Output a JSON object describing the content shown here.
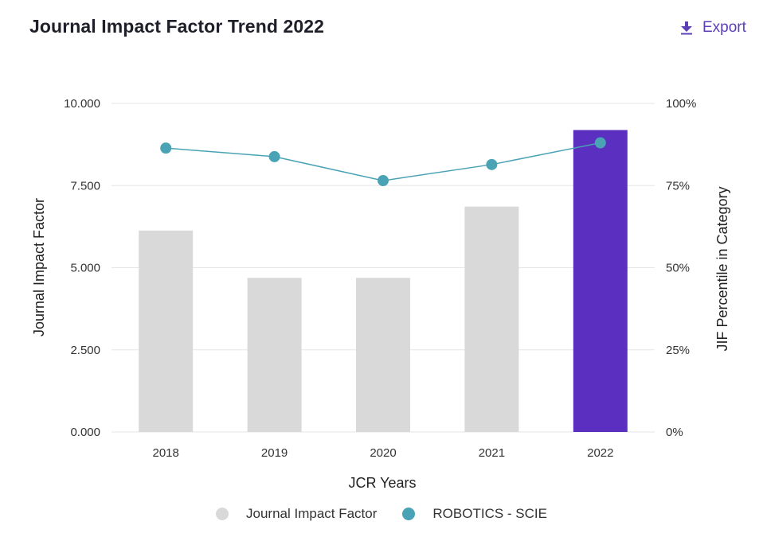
{
  "header": {
    "title": "Journal Impact Factor Trend 2022",
    "export_label": "Export",
    "export_icon": "download-icon"
  },
  "colors": {
    "bar_default": "#d9d9d9",
    "bar_highlight": "#5b2fc0",
    "line": "#4aa3b5",
    "accent": "#5b3fb6",
    "grid": "#e6e6e6"
  },
  "chart_data": {
    "type": "bar",
    "title": "Journal Impact Factor Trend 2022",
    "xlabel": "JCR Years",
    "ylabel": "Journal Impact Factor",
    "y2label": "JIF Percentile in Category",
    "categories": [
      "2018",
      "2019",
      "2020",
      "2021",
      "2022"
    ],
    "ylim": [
      0,
      10
    ],
    "y2lim": [
      0,
      100
    ],
    "yticks": [
      "0.000",
      "2.500",
      "5.000",
      "7.500",
      "10.000"
    ],
    "y2ticks": [
      "0%",
      "25%",
      "50%",
      "75%",
      "100%"
    ],
    "grid": true,
    "legend_position": "bottom",
    "highlight_category": "2022",
    "series": [
      {
        "name": "Journal Impact Factor",
        "type": "bar",
        "axis": "left",
        "values": [
          6.13,
          4.69,
          4.69,
          6.86,
          9.19
        ]
      },
      {
        "name": "ROBOTICS - SCIE",
        "type": "line",
        "axis": "right",
        "values": [
          86.4,
          83.8,
          76.5,
          81.4,
          88.0
        ]
      }
    ]
  }
}
